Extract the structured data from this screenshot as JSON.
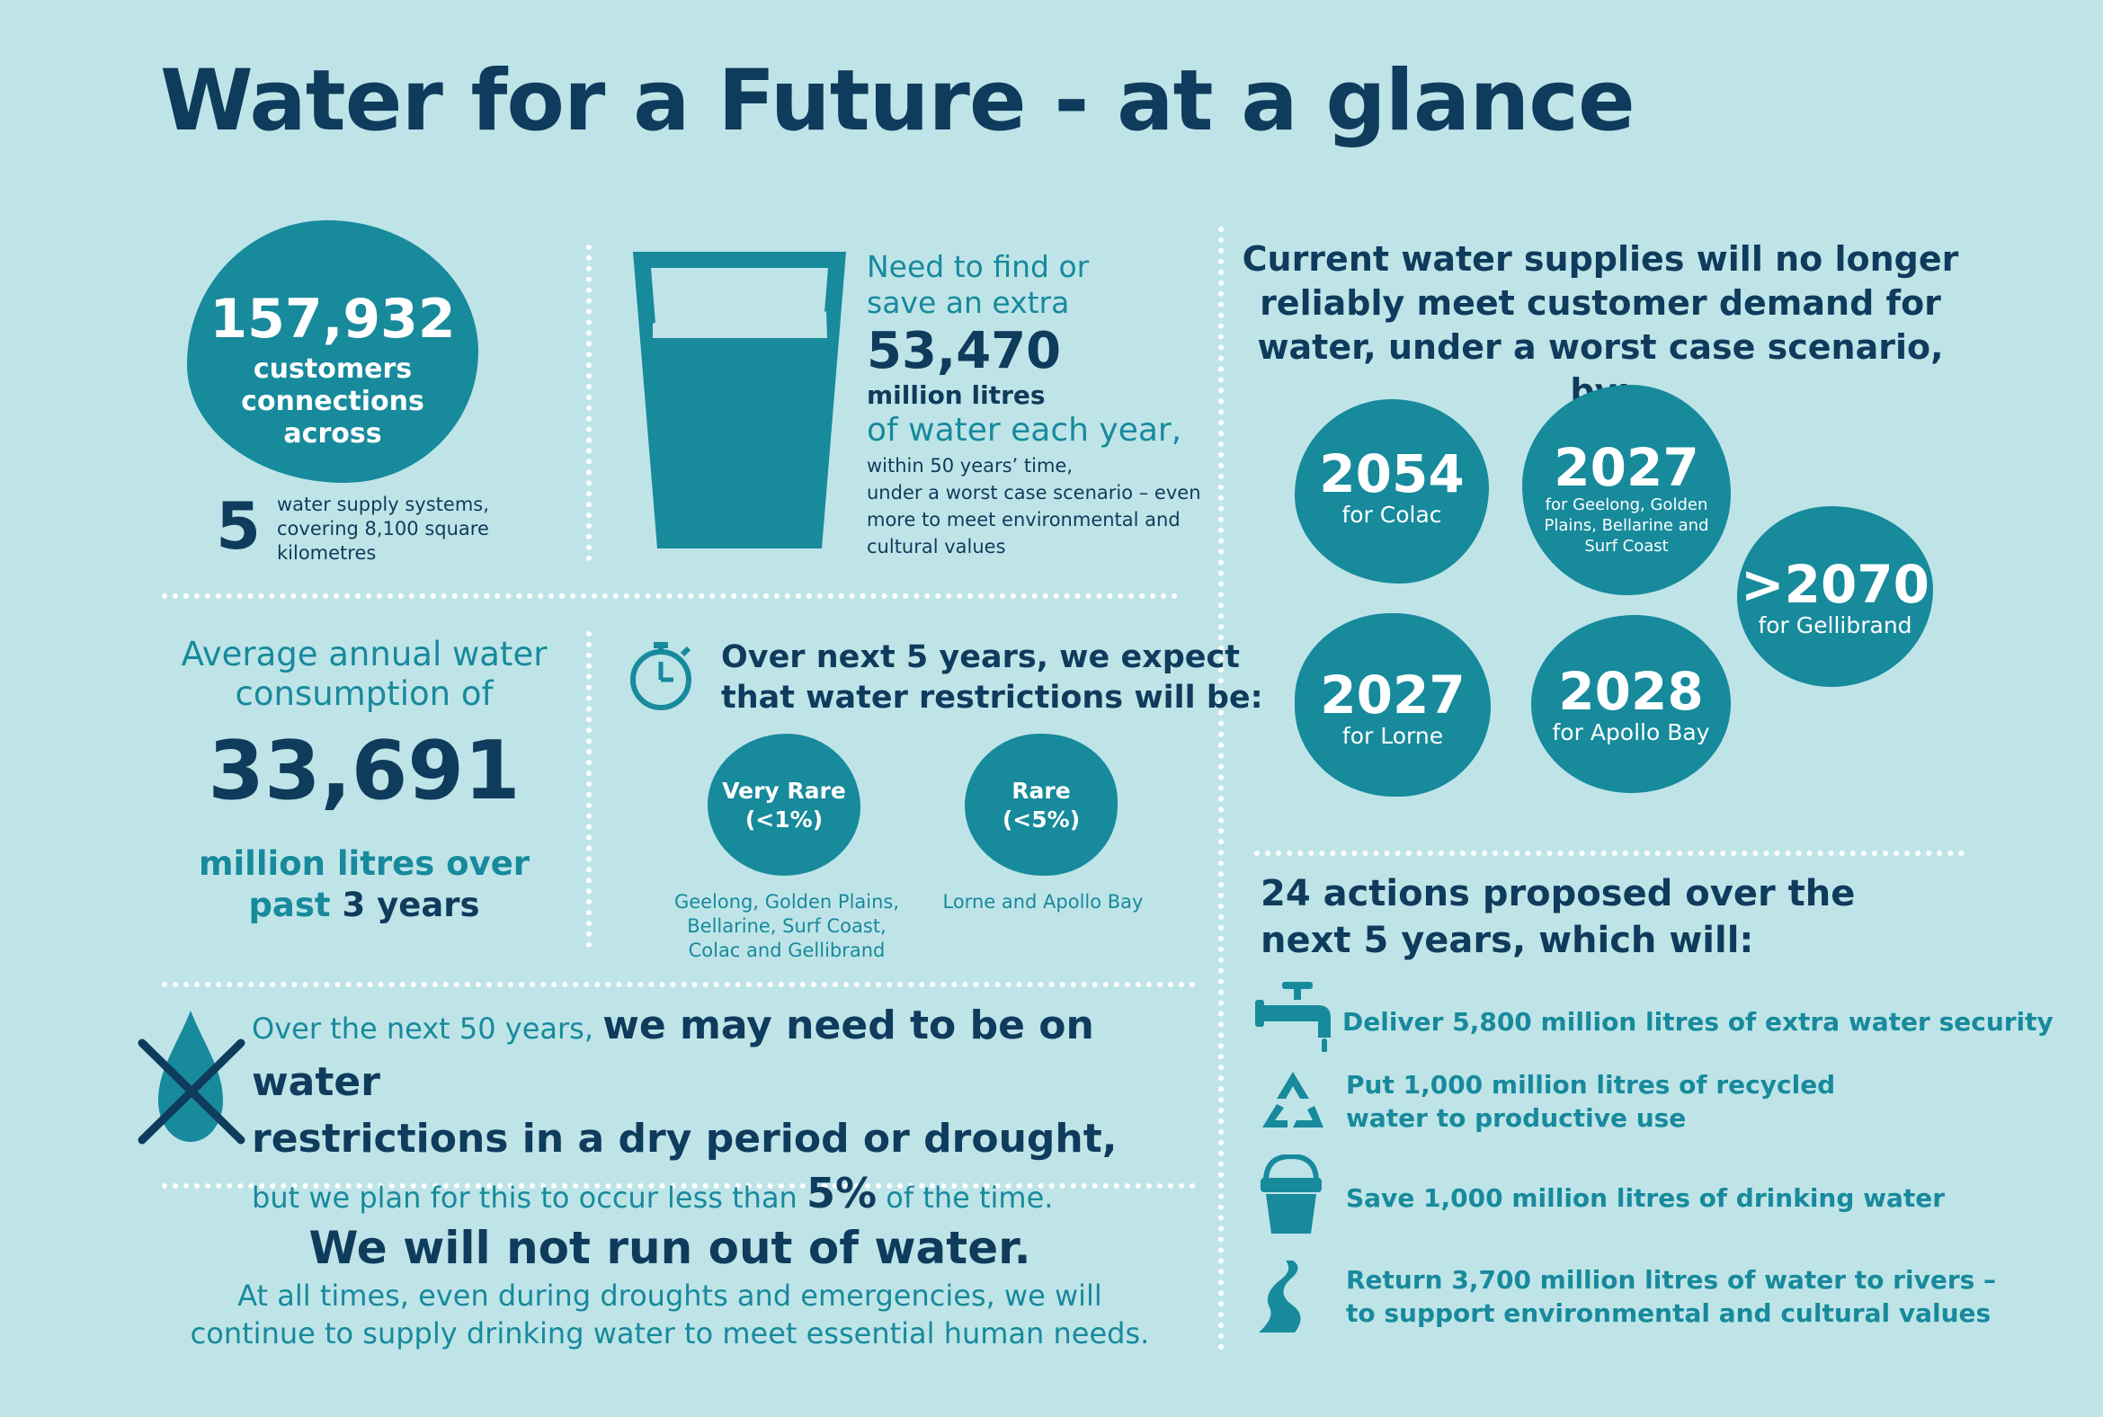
{
  "title": "Water for a Future - at a glance",
  "customers": {
    "number": "157,932",
    "label_line1": "customers",
    "label_line2": "connections",
    "label_line3": "across",
    "systems_number": "5",
    "systems_text_line1": "water supply systems,",
    "systems_text_line2": "covering 8,100 square",
    "systems_text_line3": "kilometres"
  },
  "need": {
    "line1": "Need to find or",
    "line2": "save an extra",
    "number": "53,470",
    "unit": "million litres",
    "per_year": "of water each year,",
    "detail_line1": "within 50 years’ time,",
    "detail_line2": "under a worst case scenario – even",
    "detail_line3": "more to meet environmental and",
    "detail_line4": "cultural values"
  },
  "supply": {
    "heading_line1": "Current water supplies will no longer",
    "heading_line2": "reliably meet customer demand for",
    "heading_line3": "water, under a worst case scenario, by:",
    "items": [
      {
        "year": "2054",
        "place": "for Colac"
      },
      {
        "year": "2027",
        "place_line1": "for Geelong, Golden",
        "place_line2": "Plains, Bellarine and",
        "place_line3": "Surf Coast"
      },
      {
        "year": ">2070",
        "place": "for Gellibrand"
      },
      {
        "year": "2027",
        "place": "for Lorne"
      },
      {
        "year": "2028",
        "place": "for Apollo Bay"
      }
    ]
  },
  "consumption": {
    "line1": "Average annual water",
    "line2": "consumption of",
    "number": "33,691",
    "line3": "million litres over",
    "line4_a": "past ",
    "line4_b": "3 years"
  },
  "restrictions": {
    "icon": "stopwatch-icon",
    "heading_line1": "Over next 5 years, we expect",
    "heading_line2": "that water restrictions will be:",
    "very_rare_label": "Very Rare",
    "very_rare_value": "(<1%)",
    "very_rare_places_line1": "Geelong, Golden Plains,",
    "very_rare_places_line2": "Bellarine, Surf Coast,",
    "very_rare_places_line3": "Colac and Gellibrand",
    "rare_label": "Rare",
    "rare_value": "(<5%)",
    "rare_places": "Lorne and Apollo Bay"
  },
  "drought": {
    "icon": "crossed-droplet-icon",
    "intro": "Over the next 50 years, ",
    "bold_line1": "we may need to be on water",
    "bold_line2": "restrictions in a dry period or drought,",
    "plan_a": "but we plan for this to occur less than ",
    "plan_pct": "5%",
    "plan_b": " of the time."
  },
  "never": {
    "heading": "We will not run out of water.",
    "line1": "At all times, even during droughts and emergencies, we will",
    "line2": "continue to supply drinking water to meet essential human needs."
  },
  "actions": {
    "heading_line1": "24 actions proposed over the",
    "heading_line2": "next 5 years, which will:",
    "items": [
      {
        "icon": "tap-icon",
        "line1": "Deliver 5,800 million litres of extra water security"
      },
      {
        "icon": "recycle-icon",
        "line1": "Put 1,000 million litres of recycled",
        "line2": "water to productive use"
      },
      {
        "icon": "bucket-icon",
        "line1": "Save 1,000 million litres of drinking water"
      },
      {
        "icon": "river-icon",
        "line1": "Return 3,700 million litres of water to rivers –",
        "line2": "to support environmental and cultural values"
      }
    ]
  },
  "colors": {
    "background": "#bfe4e8",
    "navy": "#0f3b5c",
    "teal": "#178a9c",
    "dots": "#ffffff"
  }
}
